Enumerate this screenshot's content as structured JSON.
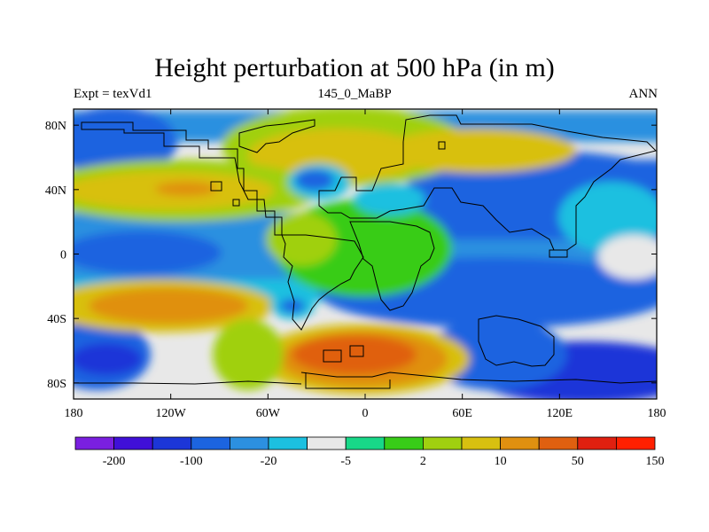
{
  "chart_data": {
    "type": "heatmap",
    "title": "Height perturbation at 500 hPa (in m)",
    "left_label": "Expt = texVd1",
    "center_label": "145_0_MaBP",
    "right_label": "ANN",
    "x_ticks": [
      "180",
      "120W",
      "60W",
      "0",
      "60E",
      "120E",
      "180"
    ],
    "y_ticks": [
      "80N",
      "40N",
      "0",
      "40S",
      "80S"
    ],
    "xlim": [
      -180,
      180
    ],
    "ylim": [
      -90,
      90
    ],
    "colorbar": {
      "labels": [
        "-200",
        "-100",
        "-20",
        "-5",
        "2",
        "10",
        "50",
        "150"
      ],
      "colors": [
        "#7a1fe0",
        "#4010d8",
        "#1c36d8",
        "#1c64e0",
        "#2c90e0",
        "#1cc0e0",
        "#e8e8e8",
        "#18d888",
        "#38cc18",
        "#a0d010",
        "#d8c010",
        "#e09010",
        "#e06010",
        "#e02010",
        "#ff2000"
      ]
    }
  }
}
